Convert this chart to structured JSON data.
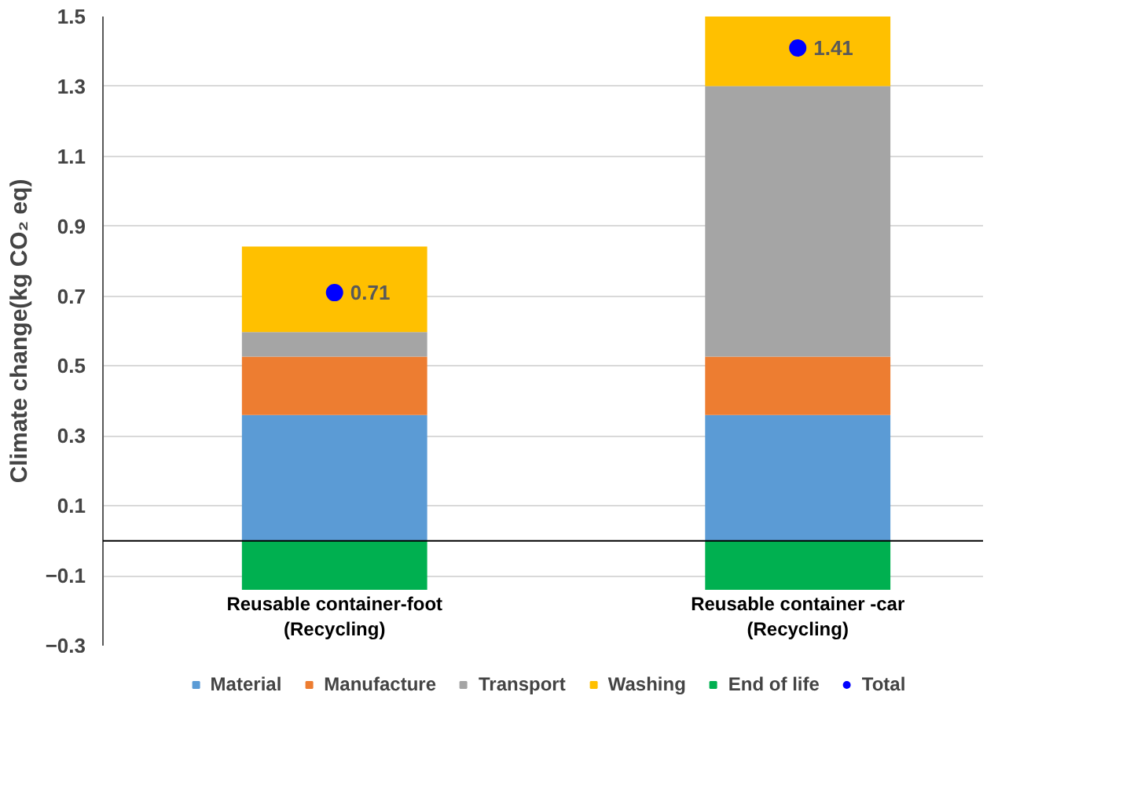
{
  "chart_data": {
    "type": "bar",
    "stacked": true,
    "categories": [
      "Reusable container-foot\n(Recycling)",
      "Reusable container -car\n(Recycling)"
    ],
    "ylabel": "Climate change(kg CO₂ eq)",
    "ylim": [
      -0.3,
      1.5
    ],
    "yticks": [
      -0.3,
      -0.1,
      0.1,
      0.3,
      0.5,
      0.7,
      0.9,
      1.1,
      1.3,
      1.5
    ],
    "grid": "y",
    "legend": "bottom",
    "series": [
      {
        "name": "Material",
        "color": "#5b9bd5",
        "values": [
          0.36,
          0.36
        ]
      },
      {
        "name": "Manufacture",
        "color": "#ed7d31",
        "values": [
          0.167,
          0.167
        ]
      },
      {
        "name": "Transport",
        "color": "#a5a5a5",
        "values": [
          0.07,
          0.774
        ]
      },
      {
        "name": "Washing",
        "color": "#ffc000",
        "values": [
          0.245,
          0.199
        ]
      },
      {
        "name": "End of life",
        "color": "#00b050",
        "values": [
          -0.14,
          -0.14
        ]
      },
      {
        "name": "Total",
        "type": "scatter",
        "marker": "circle",
        "color": "#0000ff",
        "values": [
          0.71,
          1.41
        ],
        "value_labels": [
          "0.71",
          "1.41"
        ]
      }
    ]
  }
}
